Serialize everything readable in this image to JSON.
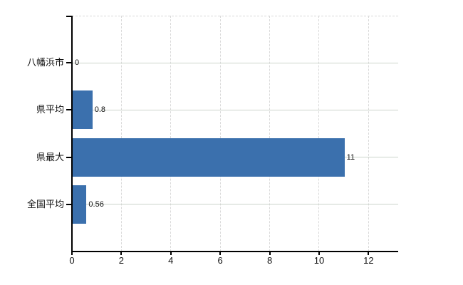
{
  "chart_data": {
    "type": "bar",
    "orientation": "horizontal",
    "title": "",
    "xlabel": "",
    "ylabel": "",
    "categories": [
      "八幡浜市",
      "県平均",
      "県最大",
      "全国平均"
    ],
    "values": [
      0,
      0.8,
      11,
      0.56
    ],
    "xlim": [
      0,
      13.2
    ],
    "xticks": [
      0,
      2,
      4,
      6,
      8,
      10,
      12
    ],
    "grid": true,
    "legend": false,
    "colors": {
      "bar": "#3b70ad",
      "axis": "#000000",
      "h_grid": "#ccd4cb",
      "v_grid": "#d9d9d9",
      "text": "#111111"
    }
  }
}
